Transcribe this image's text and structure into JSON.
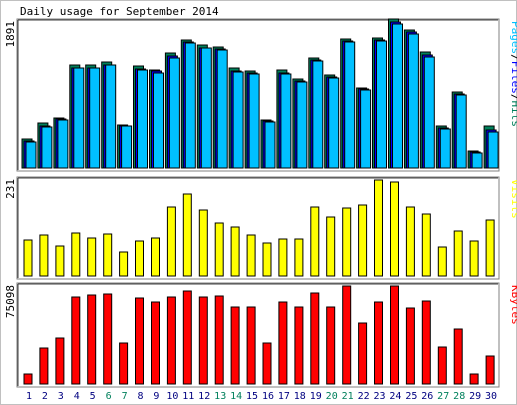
{
  "title": "Daily usage for September 2014",
  "colors": {
    "hits": "#00805c",
    "files": "#0000ff",
    "pages": "#00c0ff",
    "visits": "#ffff00",
    "kbytes": "#ff0000",
    "weekend_label": "#00805c",
    "weekday_label": "#000080"
  },
  "chart_data": [
    {
      "type": "bar",
      "name": "hits-files-pages",
      "y_max_label": "1891",
      "axis_label_parts": [
        "Pages",
        "Files",
        "Hits"
      ],
      "axis_label_sep": "/",
      "ylim": [
        0,
        1891
      ],
      "categories": [
        "1",
        "2",
        "3",
        "4",
        "5",
        "6",
        "7",
        "8",
        "9",
        "10",
        "11",
        "12",
        "13",
        "14",
        "15",
        "16",
        "17",
        "18",
        "19",
        "20",
        "21",
        "22",
        "23",
        "24",
        "25",
        "26",
        "27",
        "28",
        "29",
        "30"
      ],
      "series": [
        {
          "name": "Hits",
          "values": [
            370,
            580,
            650,
            1330,
            1330,
            1370,
            560,
            1320,
            1270,
            1490,
            1660,
            1590,
            1570,
            1290,
            1250,
            620,
            1270,
            1150,
            1430,
            1200,
            1670,
            1040,
            1690,
            1930,
            1790,
            1500,
            540,
            990,
            220,
            550
          ]
        },
        {
          "name": "Files",
          "values": [
            350,
            550,
            630,
            1300,
            1300,
            1340,
            550,
            1280,
            1250,
            1450,
            1630,
            1560,
            1540,
            1260,
            1230,
            610,
            1230,
            1130,
            1400,
            1180,
            1640,
            1020,
            1660,
            1890,
            1760,
            1460,
            520,
            960,
            210,
            490
          ]
        },
        {
          "name": "Pages",
          "values": [
            340,
            530,
            620,
            1290,
            1290,
            1330,
            540,
            1270,
            1230,
            1430,
            1620,
            1550,
            1530,
            1240,
            1220,
            600,
            1220,
            1120,
            1380,
            1170,
            1630,
            1010,
            1650,
            1860,
            1740,
            1440,
            510,
            940,
            200,
            470
          ]
        }
      ]
    },
    {
      "type": "bar",
      "name": "visits",
      "y_max_label": "231",
      "axis_label_parts": [
        "Visits"
      ],
      "axis_label_sep": "",
      "ylim": [
        0,
        231
      ],
      "categories": [
        "1",
        "2",
        "3",
        "4",
        "5",
        "6",
        "7",
        "8",
        "9",
        "10",
        "11",
        "12",
        "13",
        "14",
        "15",
        "16",
        "17",
        "18",
        "19",
        "20",
        "21",
        "22",
        "23",
        "24",
        "25",
        "26",
        "27",
        "28",
        "29",
        "30"
      ],
      "series": [
        {
          "name": "Visits",
          "values": [
            86,
            99,
            73,
            104,
            91,
            101,
            58,
            85,
            92,
            165,
            198,
            158,
            127,
            117,
            99,
            80,
            89,
            89,
            165,
            143,
            163,
            171,
            231,
            225,
            166,
            149,
            70,
            108,
            85,
            134
          ]
        }
      ]
    },
    {
      "type": "bar",
      "name": "kbytes",
      "y_max_label": "75098",
      "axis_label_parts": [
        "KBytes"
      ],
      "axis_label_sep": "",
      "ylim": [
        0,
        75098
      ],
      "categories": [
        "1",
        "2",
        "3",
        "4",
        "5",
        "6",
        "7",
        "8",
        "9",
        "10",
        "11",
        "12",
        "13",
        "14",
        "15",
        "16",
        "17",
        "18",
        "19",
        "20",
        "21",
        "22",
        "23",
        "24",
        "25",
        "26",
        "27",
        "28",
        "29",
        "30"
      ],
      "series": [
        {
          "name": "KBytes",
          "values": [
            7400,
            27400,
            35000,
            66700,
            68000,
            68800,
            31500,
            65800,
            62500,
            67000,
            70900,
            67000,
            67800,
            59000,
            59000,
            31500,
            62500,
            59000,
            70100,
            59000,
            74900,
            46500,
            62500,
            75000,
            58200,
            63300,
            28300,
            42200,
            7400,
            21500
          ]
        }
      ]
    }
  ],
  "x_labels": [
    "1",
    "2",
    "3",
    "4",
    "5",
    "6",
    "7",
    "8",
    "9",
    "10",
    "11",
    "12",
    "13",
    "14",
    "15",
    "16",
    "17",
    "18",
    "19",
    "20",
    "21",
    "22",
    "23",
    "24",
    "25",
    "26",
    "27",
    "28",
    "29",
    "30"
  ],
  "weekend_days": [
    "6",
    "7",
    "13",
    "14",
    "20",
    "21",
    "27",
    "28"
  ]
}
